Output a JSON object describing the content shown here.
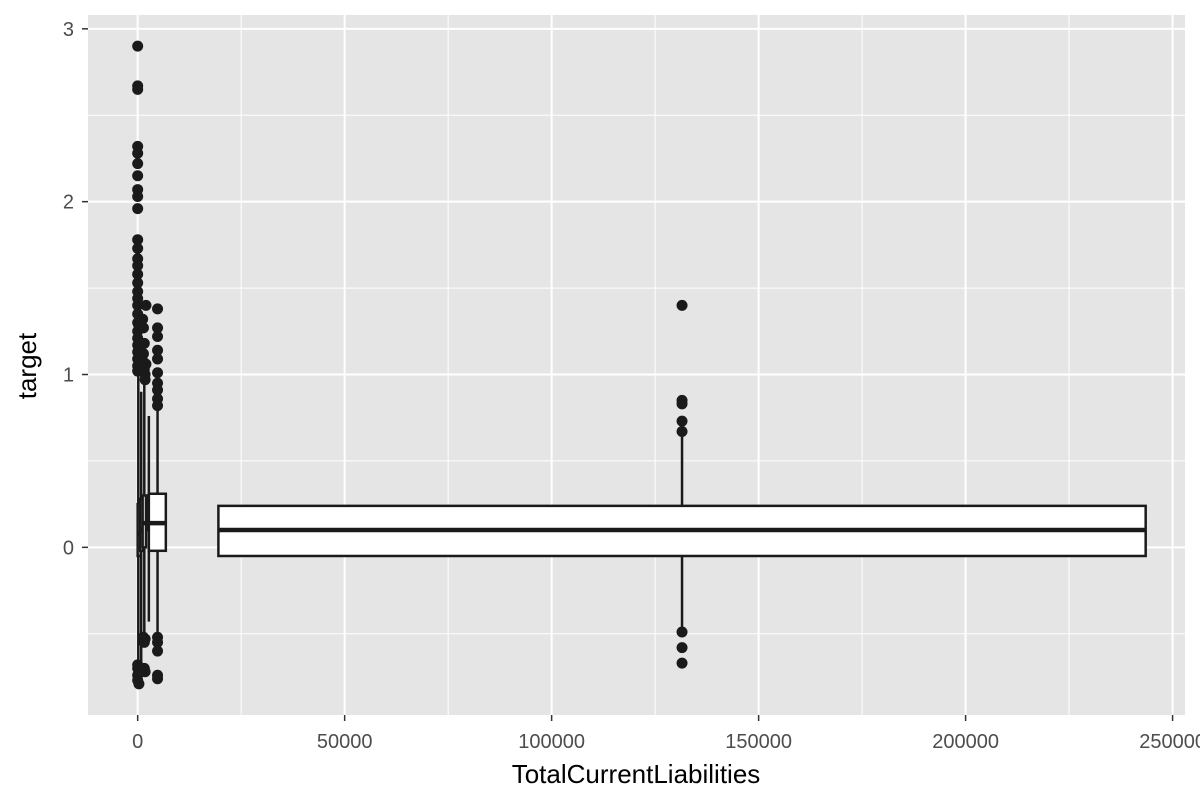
{
  "chart_data": {
    "type": "boxplot",
    "xlabel": "TotalCurrentLiabilities",
    "ylabel": "target",
    "xlim": [
      -12000,
      253000
    ],
    "ylim": [
      -0.97,
      3.08
    ],
    "x_ticks": [
      0,
      50000,
      100000,
      150000,
      200000,
      250000
    ],
    "x_tick_labels": [
      "0",
      "50000",
      "100000",
      "150000",
      "200000",
      "250000"
    ],
    "y_ticks": [
      0,
      1,
      2,
      3
    ],
    "y_tick_labels": [
      "0",
      "1",
      "2",
      "3"
    ],
    "grid": true,
    "colors": {
      "panel_background": "#e5e5e5",
      "grid": "#ffffff",
      "box_fill": "#ffffff",
      "box_stroke": "#1a1a1a",
      "outlier": "#1a1a1a",
      "tick_label": "#4d4d4d"
    },
    "boxes": [
      {
        "x_min": 0,
        "x_max": 300,
        "whisker_x": 150,
        "q1": -0.05,
        "median": 0.08,
        "q3": 0.25,
        "whisker_low": -0.75,
        "whisker_high": 1.0,
        "outliers": [
          {
            "x": 0,
            "y": 2.9
          },
          {
            "x": 0,
            "y": 2.67
          },
          {
            "x": 0,
            "y": 2.65
          },
          {
            "x": 0,
            "y": 2.32
          },
          {
            "x": 0,
            "y": 2.28
          },
          {
            "x": 0,
            "y": 2.22
          },
          {
            "x": 0,
            "y": 2.15
          },
          {
            "x": 0,
            "y": 2.07
          },
          {
            "x": 0,
            "y": 2.03
          },
          {
            "x": 0,
            "y": 1.96
          },
          {
            "x": 0,
            "y": 1.78
          },
          {
            "x": 0,
            "y": 1.73
          },
          {
            "x": 0,
            "y": 1.67
          },
          {
            "x": 0,
            "y": 1.63
          },
          {
            "x": 0,
            "y": 1.58
          },
          {
            "x": 0,
            "y": 1.53
          },
          {
            "x": 0,
            "y": 1.48
          },
          {
            "x": 0,
            "y": 1.44
          },
          {
            "x": 0,
            "y": 1.4
          },
          {
            "x": 0,
            "y": 1.35
          },
          {
            "x": 0,
            "y": 1.3
          },
          {
            "x": 0,
            "y": 1.25
          },
          {
            "x": 0,
            "y": 1.21
          },
          {
            "x": 0,
            "y": 1.17
          },
          {
            "x": 0,
            "y": 1.13
          },
          {
            "x": 0,
            "y": 1.09
          },
          {
            "x": 0,
            "y": 1.05
          },
          {
            "x": 0,
            "y": 1.02
          },
          {
            "x": 300,
            "y": 1.28
          },
          {
            "x": 300,
            "y": 1.15
          },
          {
            "x": 300,
            "y": 1.08
          },
          {
            "x": 300,
            "y": 1.03
          },
          {
            "x": 0,
            "y": -0.68
          },
          {
            "x": 0,
            "y": -0.7
          },
          {
            "x": 0,
            "y": -0.74
          },
          {
            "x": 0,
            "y": -0.77
          },
          {
            "x": 300,
            "y": -0.79
          },
          {
            "x": 300,
            "y": -0.72
          }
        ]
      },
      {
        "x_min": 600,
        "x_max": 1100,
        "whisker_x": 850,
        "q1": -0.02,
        "median": 0.1,
        "q3": 0.28,
        "whisker_low": -0.68,
        "whisker_high": 0.9,
        "outliers": []
      },
      {
        "x_min": 1200,
        "x_max": 2000,
        "whisker_x": 1600,
        "q1": 0.0,
        "median": 0.14,
        "q3": 0.3,
        "whisker_low": -0.5,
        "whisker_high": 0.96,
        "outliers": [
          {
            "x": 1200,
            "y": 1.32
          },
          {
            "x": 1400,
            "y": 1.27
          },
          {
            "x": 1600,
            "y": 1.18
          },
          {
            "x": 1400,
            "y": 1.12
          },
          {
            "x": 1200,
            "y": 1.08
          },
          {
            "x": 1600,
            "y": 1.03
          },
          {
            "x": 1800,
            "y": 1.0
          },
          {
            "x": 1800,
            "y": 0.97
          },
          {
            "x": 2000,
            "y": 1.4
          },
          {
            "x": 2000,
            "y": 1.06
          },
          {
            "x": 1400,
            "y": -0.52
          },
          {
            "x": 1600,
            "y": -0.55
          },
          {
            "x": 1800,
            "y": -0.53
          },
          {
            "x": 1600,
            "y": -0.7
          },
          {
            "x": 1800,
            "y": -0.72
          }
        ]
      },
      {
        "x_min": 2400,
        "x_max": 3000,
        "whisker_x": 2700,
        "q1": 0.1,
        "median": 0.17,
        "q3": 0.3,
        "whisker_low": -0.43,
        "whisker_high": 0.76,
        "outliers": []
      },
      {
        "x_min": 2700,
        "x_max": 6800,
        "whisker_x": 4800,
        "q1": -0.02,
        "median": 0.14,
        "q3": 0.31,
        "whisker_low": -0.5,
        "whisker_high": 0.8,
        "outliers": [
          {
            "x": 4800,
            "y": 1.38
          },
          {
            "x": 4800,
            "y": 1.27
          },
          {
            "x": 4800,
            "y": 1.22
          },
          {
            "x": 4800,
            "y": 1.14
          },
          {
            "x": 4800,
            "y": 1.09
          },
          {
            "x": 4800,
            "y": 1.01
          },
          {
            "x": 4800,
            "y": 0.95
          },
          {
            "x": 4800,
            "y": 0.91
          },
          {
            "x": 4800,
            "y": 0.86
          },
          {
            "x": 4800,
            "y": 0.82
          },
          {
            "x": 4800,
            "y": -0.52
          },
          {
            "x": 4800,
            "y": -0.55
          },
          {
            "x": 4800,
            "y": -0.6
          },
          {
            "x": 4800,
            "y": -0.74
          },
          {
            "x": 4800,
            "y": -0.76
          }
        ]
      },
      {
        "x_min": 19500,
        "x_max": 243500,
        "whisker_x": 131500,
        "q1": -0.05,
        "median": 0.1,
        "q3": 0.24,
        "whisker_low": -0.47,
        "whisker_high": 0.66,
        "outliers": [
          {
            "x": 131500,
            "y": 1.4
          },
          {
            "x": 131500,
            "y": 0.85
          },
          {
            "x": 131500,
            "y": 0.83
          },
          {
            "x": 131500,
            "y": 0.73
          },
          {
            "x": 131500,
            "y": 0.67
          },
          {
            "x": 131500,
            "y": -0.49
          },
          {
            "x": 131500,
            "y": -0.58
          },
          {
            "x": 131500,
            "y": -0.67
          }
        ]
      }
    ]
  }
}
